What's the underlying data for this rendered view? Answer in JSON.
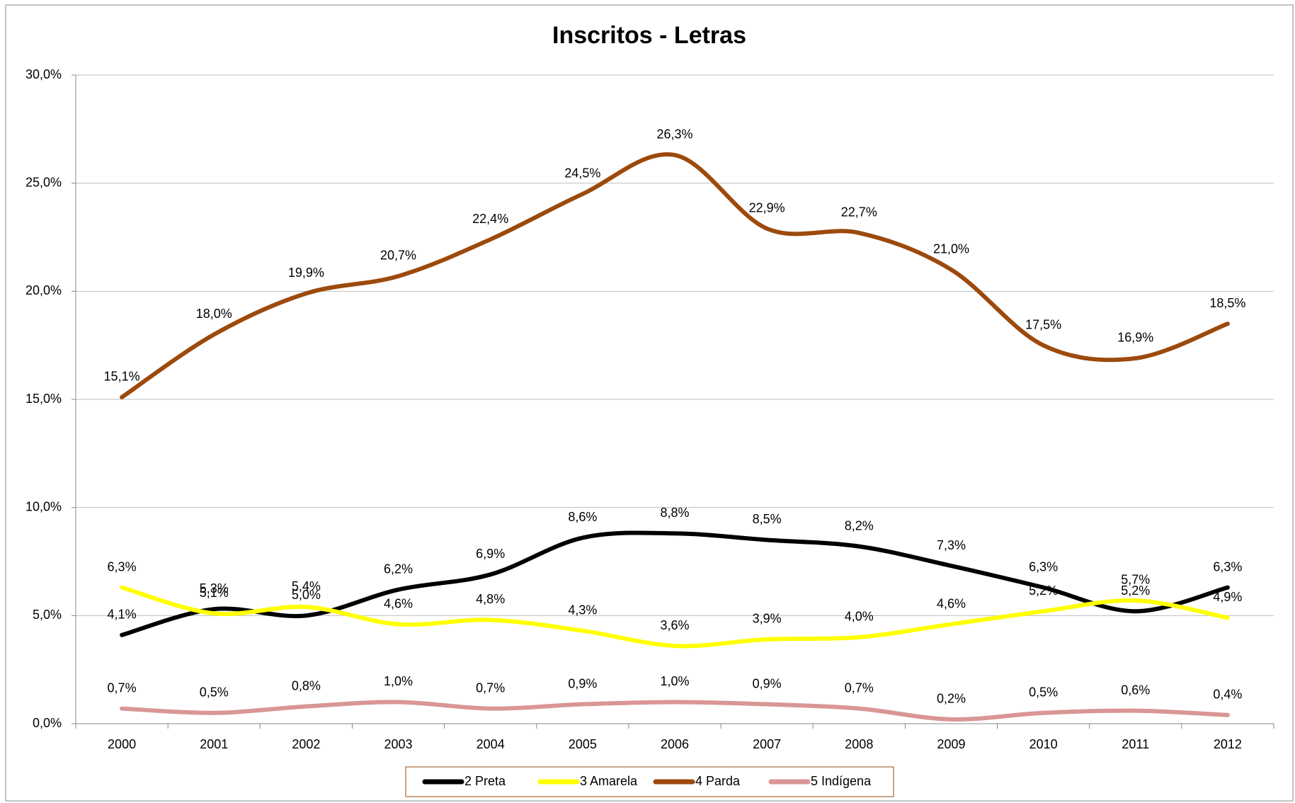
{
  "chart_data": {
    "type": "line",
    "title": "Inscritos - Letras",
    "categories": [
      "2000",
      "2001",
      "2002",
      "2003",
      "2004",
      "2005",
      "2006",
      "2007",
      "2008",
      "2009",
      "2010",
      "2011",
      "2012"
    ],
    "series": [
      {
        "name": "2 Preta",
        "color": "#000000",
        "values": [
          4.1,
          5.3,
          5.0,
          6.2,
          6.9,
          8.6,
          8.8,
          8.5,
          8.2,
          7.3,
          6.3,
          5.2,
          6.3
        ],
        "value_labels": [
          "4,1%",
          "5,3%",
          "5,0%",
          "6,2%",
          "6,9%",
          "8,6%",
          "8,8%",
          "8,5%",
          "8,2%",
          "7,3%",
          "6,3%",
          "5,2%",
          "6,3%"
        ]
      },
      {
        "name": "3 Amarela",
        "color": "#ffff00",
        "values": [
          6.3,
          5.1,
          5.4,
          4.6,
          4.8,
          4.3,
          3.6,
          3.9,
          4.0,
          4.6,
          5.2,
          5.7,
          4.9
        ],
        "value_labels": [
          "6,3%",
          "5,1%",
          "5,4%",
          "4,6%",
          "4,8%",
          "4,3%",
          "3,6%",
          "3,9%",
          "4,0%",
          "4,6%",
          "5,2%",
          "5,7%",
          "4,9%"
        ]
      },
      {
        "name": "4 Parda",
        "color": "#9c4a0c",
        "values": [
          15.1,
          18.0,
          19.9,
          20.7,
          22.4,
          24.5,
          26.3,
          22.9,
          22.7,
          21.0,
          17.5,
          16.9,
          18.5
        ],
        "value_labels": [
          "15,1%",
          "18,0%",
          "19,9%",
          "20,7%",
          "22,4%",
          "24,5%",
          "26,3%",
          "22,9%",
          "22,7%",
          "21,0%",
          "17,5%",
          "16,9%",
          "18,5%"
        ]
      },
      {
        "name": "5 Indígena",
        "color": "#d99694",
        "values": [
          0.7,
          0.5,
          0.8,
          1.0,
          0.7,
          0.9,
          1.0,
          0.9,
          0.7,
          0.2,
          0.5,
          0.6,
          0.4
        ],
        "value_labels": [
          "0,7%",
          "0,5%",
          "0,8%",
          "1,0%",
          "0,7%",
          "0,9%",
          "1,0%",
          "0,9%",
          "0,7%",
          "0,2%",
          "0,5%",
          "0,6%",
          "0,4%"
        ]
      }
    ],
    "ylim": [
      0,
      30
    ],
    "yticks": [
      {
        "value": 0,
        "label": "0,0%"
      },
      {
        "value": 5,
        "label": "5,0%"
      },
      {
        "value": 10,
        "label": "10,0%"
      },
      {
        "value": 15,
        "label": "15,0%"
      },
      {
        "value": 20,
        "label": "20,0%"
      },
      {
        "value": 25,
        "label": "25,0%"
      },
      {
        "value": 30,
        "label": "30,0%"
      }
    ],
    "grid": true,
    "legend": "bottom",
    "smooth": true
  }
}
